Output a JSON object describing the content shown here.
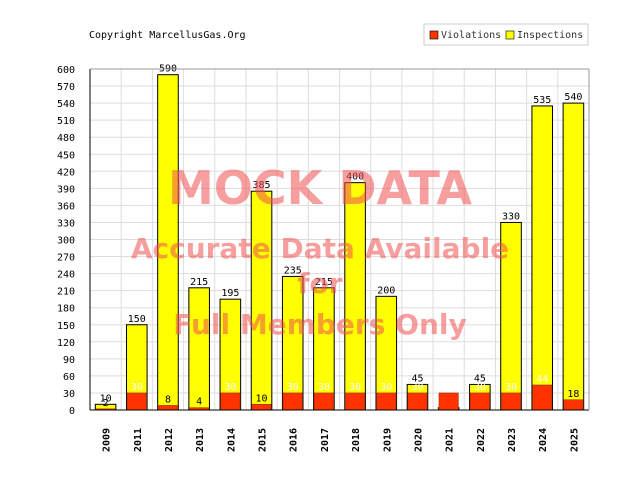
{
  "copyright": "Copyright MarcellusGas.Org",
  "watermark": {
    "line1": "MOCK DATA",
    "line2": "Accurate Data Available",
    "line3": "for",
    "line4": "Full Members Only"
  },
  "colors": {
    "violations": "#ff3300",
    "inspections": "#ffff00",
    "watermark": "#f05050",
    "grid": "#dddddd"
  },
  "chart_data": {
    "type": "bar",
    "categories": [
      "2009",
      "2011",
      "2012",
      "2013",
      "2014",
      "2015",
      "2016",
      "2017",
      "2018",
      "2019",
      "2020",
      "2021",
      "2022",
      "2023",
      "2024",
      "2025"
    ],
    "series": [
      {
        "name": "Violations",
        "color": "#ff3300",
        "values": [
          2,
          30,
          8,
          4,
          30,
          10,
          30,
          30,
          30,
          30,
          30,
          30,
          30,
          30,
          44,
          18
        ]
      },
      {
        "name": "Inspections",
        "color": "#ffff00",
        "values": [
          10,
          150,
          590,
          215,
          195,
          385,
          235,
          215,
          400,
          200,
          45,
          4,
          45,
          330,
          535,
          540
        ]
      }
    ],
    "data_labels": {
      "Violations": [
        "2",
        "30",
        "8",
        "4",
        "30",
        "10",
        "30",
        "30",
        "30",
        "30",
        "30",
        "30",
        "30",
        "30",
        "44",
        "18"
      ],
      "Inspections": [
        "10",
        "150",
        "590",
        "215",
        "195",
        "385",
        "235",
        "215",
        "400",
        "200",
        "45",
        "",
        "45",
        "330",
        "535",
        "540"
      ]
    },
    "yticks": [
      0,
      30,
      60,
      90,
      120,
      150,
      180,
      210,
      240,
      270,
      300,
      330,
      360,
      390,
      420,
      450,
      480,
      510,
      540,
      570,
      600
    ],
    "ylim": [
      0,
      600
    ],
    "grid": true,
    "legend": "top-right",
    "title": "",
    "xlabel": "",
    "ylabel": ""
  }
}
